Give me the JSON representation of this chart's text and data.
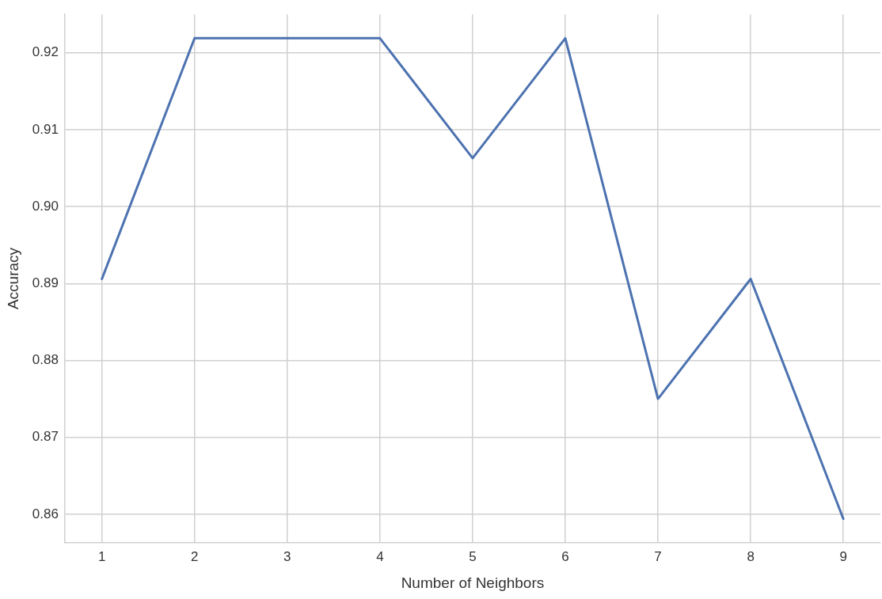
{
  "chart_data": {
    "type": "line",
    "xlabel": "Number of Neighbors",
    "ylabel": "Accuracy",
    "x": [
      1,
      2,
      3,
      4,
      5,
      6,
      7,
      8,
      9
    ],
    "series": [
      {
        "color": "#4c72b0",
        "values": [
          0.8906,
          0.9219,
          0.9219,
          0.9219,
          0.9063,
          0.9219,
          0.875,
          0.8906,
          0.8594
        ]
      }
    ],
    "xlim": [
      0.6,
      9.4
    ],
    "xticks": [
      1,
      2,
      3,
      4,
      5,
      6,
      7,
      8,
      9
    ],
    "ylim": [
      0.8563,
      0.925
    ],
    "yticks": [
      {
        "value": 0.86,
        "label": "0.86"
      },
      {
        "value": 0.87,
        "label": "0.87"
      },
      {
        "value": 0.88,
        "label": "0.88"
      },
      {
        "value": 0.89,
        "label": "0.89"
      },
      {
        "value": 0.9,
        "label": "0.90"
      },
      {
        "value": 0.91,
        "label": "0.91"
      },
      {
        "value": 0.92,
        "label": "0.92"
      }
    ],
    "grid": true,
    "legend": false,
    "marker": "none",
    "line_style": "solid"
  }
}
